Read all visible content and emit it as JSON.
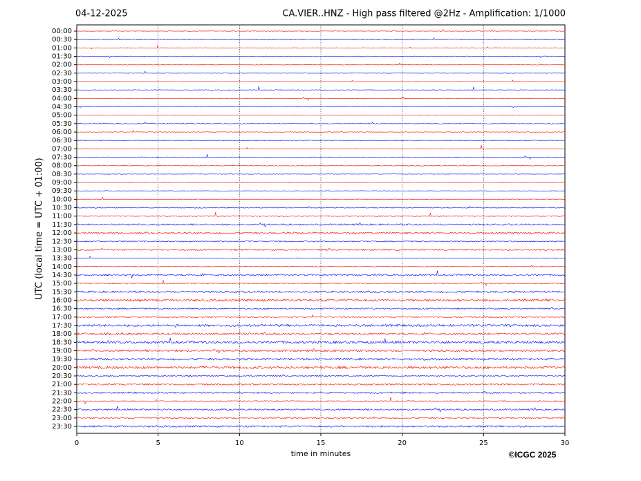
{
  "chart_data": {
    "type": "helicorder",
    "title_left": "04-12-2025",
    "title": "CA.VIER..HNZ - High pass filtered @2Hz - Amplification: 1/1000",
    "ylabel": "UTC (local time = UTC + 01:00)",
    "xlabel": "time in minutes",
    "copyright": "©ICGC 2025",
    "categories": [
      "00:00",
      "00:30",
      "01:00",
      "01:30",
      "02:00",
      "02:30",
      "03:00",
      "03:30",
      "04:00",
      "04:30",
      "05:00",
      "05:30",
      "06:00",
      "06:30",
      "07:00",
      "07:30",
      "08:00",
      "08:30",
      "09:00",
      "09:30",
      "10:00",
      "10:30",
      "11:00",
      "11:30",
      "12:00",
      "12:30",
      "13:00",
      "13:30",
      "14:00",
      "14:30",
      "15:00",
      "15:30",
      "16:00",
      "16:30",
      "17:00",
      "17:30",
      "18:00",
      "18:30",
      "19:00",
      "19:30",
      "20:00",
      "20:30",
      "21:00",
      "21:30",
      "22:00",
      "22:30",
      "23:00",
      "23:30"
    ],
    "colors": [
      "#ff0000",
      "#0000ff"
    ],
    "xlim": [
      0,
      30
    ],
    "xticks": [
      0,
      5,
      10,
      15,
      20,
      25,
      30
    ],
    "grid": true
  }
}
